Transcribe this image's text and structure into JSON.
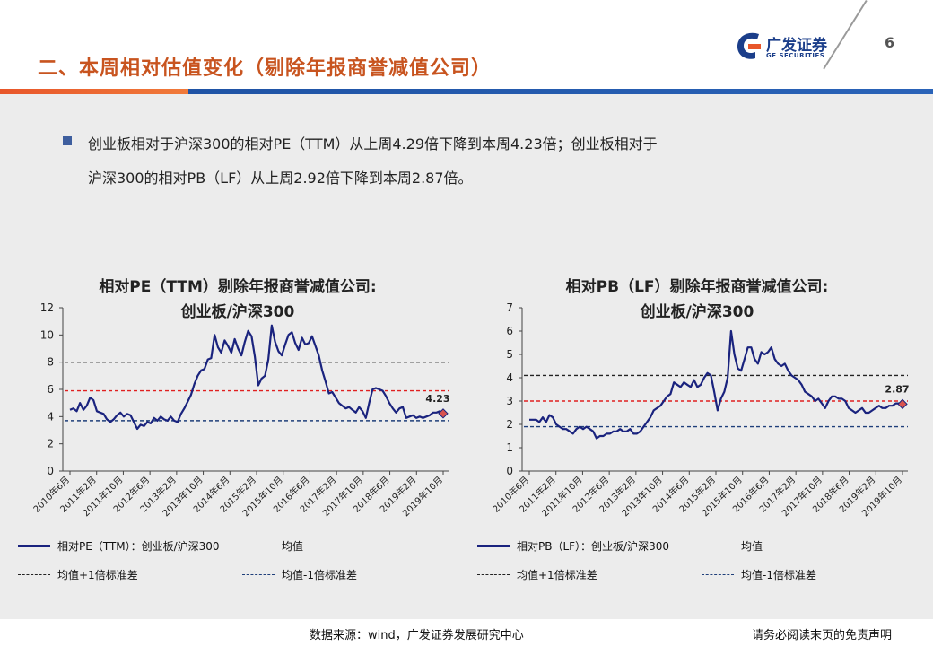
{
  "header": {
    "title": "二、本周相对估值变化（剔除年报商誉减值公司）",
    "logo_cn": "广发证券",
    "logo_en": "GF SECURITIES",
    "page_number": "6"
  },
  "bullet": {
    "line1": "创业板相对于沪深300的相对PE（TTM）从上周4.29倍下降到本周4.23倍；创业板相对于",
    "line2": "沪深300的相对PB（LF）从上周2.92倍下降到本周2.87倍。"
  },
  "colors": {
    "series": "#1a237e",
    "mean": "#e02020",
    "plus": "#222222",
    "minus": "#1f3f7a",
    "title": "#c8541f",
    "bar": "#1c4fa0"
  },
  "chart_data": [
    {
      "type": "line",
      "title_line1": "相对PE（TTM）剔除年报商誉减值公司:",
      "title_line2": "创业板/沪深300",
      "x_ticks": [
        "2010年6月",
        "2011年2月",
        "2011年10月",
        "2012年6月",
        "2013年2月",
        "2013年10月",
        "2014年6月",
        "2015年2月",
        "2015年10月",
        "2016年6月",
        "2017年2月",
        "2017年10月",
        "2018年6月",
        "2019年2月",
        "2019年10月"
      ],
      "y_ticks": [
        0,
        2,
        4,
        6,
        8,
        10,
        12
      ],
      "ylim": [
        0,
        12
      ],
      "mean": 5.9,
      "plus1": 8.0,
      "minus1": 3.7,
      "end_label": "4.23",
      "series": [
        {
          "name": "相对PE（TTM）：创业板/沪深300",
          "values": [
            4.5,
            4.6,
            4.4,
            5.0,
            4.5,
            4.8,
            5.4,
            5.2,
            4.4,
            4.3,
            4.2,
            3.8,
            3.6,
            3.8,
            4.1,
            4.3,
            4.0,
            4.2,
            4.1,
            3.6,
            3.1,
            3.4,
            3.3,
            3.6,
            3.5,
            3.9,
            3.7,
            4.0,
            3.8,
            3.7,
            4.0,
            3.7,
            3.6,
            4.2,
            4.6,
            5.1,
            5.6,
            6.4,
            7.0,
            7.4,
            7.5,
            8.2,
            8.3,
            10.0,
            9.1,
            8.7,
            9.6,
            9.2,
            8.7,
            9.7,
            9.0,
            8.5,
            9.5,
            10.3,
            9.9,
            8.4,
            6.3,
            6.8,
            7.0,
            8.2,
            10.7,
            9.5,
            8.8,
            8.5,
            9.3,
            10.0,
            10.2,
            9.4,
            8.9,
            9.8,
            9.3,
            9.4,
            9.9,
            9.2,
            8.5,
            7.4,
            6.6,
            5.7,
            5.8,
            5.4,
            5.0,
            4.8,
            4.6,
            4.7,
            4.5,
            4.3,
            4.7,
            4.4,
            3.9,
            5.0,
            6.0,
            6.1,
            6.0,
            5.9,
            5.5,
            5.0,
            4.6,
            4.3,
            4.6,
            4.7,
            3.9,
            4.0,
            4.1,
            3.9,
            4.0,
            3.9,
            4.0,
            4.1,
            4.3,
            4.3,
            4.4,
            4.23
          ]
        }
      ],
      "legend": {
        "series": "相对PE（TTM）：创业板/沪深300",
        "mean": "均值",
        "plus": "均值+1倍标准差",
        "minus": "均值-1倍标准差"
      }
    },
    {
      "type": "line",
      "title_line1": "相对PB（LF）剔除年报商誉减值公司:",
      "title_line2": "创业板/沪深300",
      "x_ticks": [
        "2010年6月",
        "2011年2月",
        "2011年10月",
        "2012年6月",
        "2013年2月",
        "2013年10月",
        "2014年6月",
        "2015年2月",
        "2015年10月",
        "2016年6月",
        "2017年2月",
        "2017年10月",
        "2018年6月",
        "2019年2月",
        "2019年10月"
      ],
      "y_ticks": [
        0,
        1,
        2,
        3,
        4,
        5,
        6,
        7
      ],
      "ylim": [
        0,
        7
      ],
      "mean": 3.0,
      "plus1": 4.1,
      "minus1": 1.9,
      "end_label": "2.87",
      "series": [
        {
          "name": "相对PB（LF）：创业板/沪深300",
          "values": [
            2.2,
            2.2,
            2.2,
            2.1,
            2.3,
            2.1,
            2.4,
            2.3,
            2.0,
            1.9,
            1.8,
            1.8,
            1.7,
            1.6,
            1.8,
            1.9,
            1.8,
            1.9,
            1.8,
            1.7,
            1.4,
            1.5,
            1.5,
            1.6,
            1.6,
            1.7,
            1.7,
            1.8,
            1.7,
            1.7,
            1.8,
            1.6,
            1.6,
            1.7,
            1.9,
            2.1,
            2.3,
            2.6,
            2.7,
            2.8,
            3.0,
            3.2,
            3.3,
            3.8,
            3.7,
            3.6,
            3.8,
            3.7,
            3.6,
            3.9,
            3.6,
            3.7,
            4.0,
            4.2,
            4.1,
            3.4,
            2.6,
            3.1,
            3.4,
            4.0,
            6.0,
            5.0,
            4.4,
            4.3,
            4.8,
            5.3,
            5.3,
            4.8,
            4.6,
            5.1,
            5.0,
            5.1,
            5.3,
            4.8,
            4.6,
            4.5,
            4.6,
            4.3,
            4.1,
            4.0,
            3.9,
            3.7,
            3.4,
            3.3,
            3.2,
            3.0,
            3.1,
            2.9,
            2.7,
            3.0,
            3.2,
            3.2,
            3.1,
            3.1,
            3.0,
            2.7,
            2.6,
            2.5,
            2.6,
            2.7,
            2.5,
            2.5,
            2.6,
            2.7,
            2.8,
            2.7,
            2.7,
            2.8,
            2.8,
            2.9,
            2.9,
            2.87
          ]
        }
      ],
      "legend": {
        "series": "相对PB（LF）：创业板/沪深300",
        "mean": "均值",
        "plus": "均值+1倍标准差",
        "minus": "均值-1倍标准差"
      }
    }
  ],
  "footer": {
    "source": "数据来源：wind，广发证券发展研究中心",
    "disclaimer": "请务必阅读末页的免责声明"
  }
}
